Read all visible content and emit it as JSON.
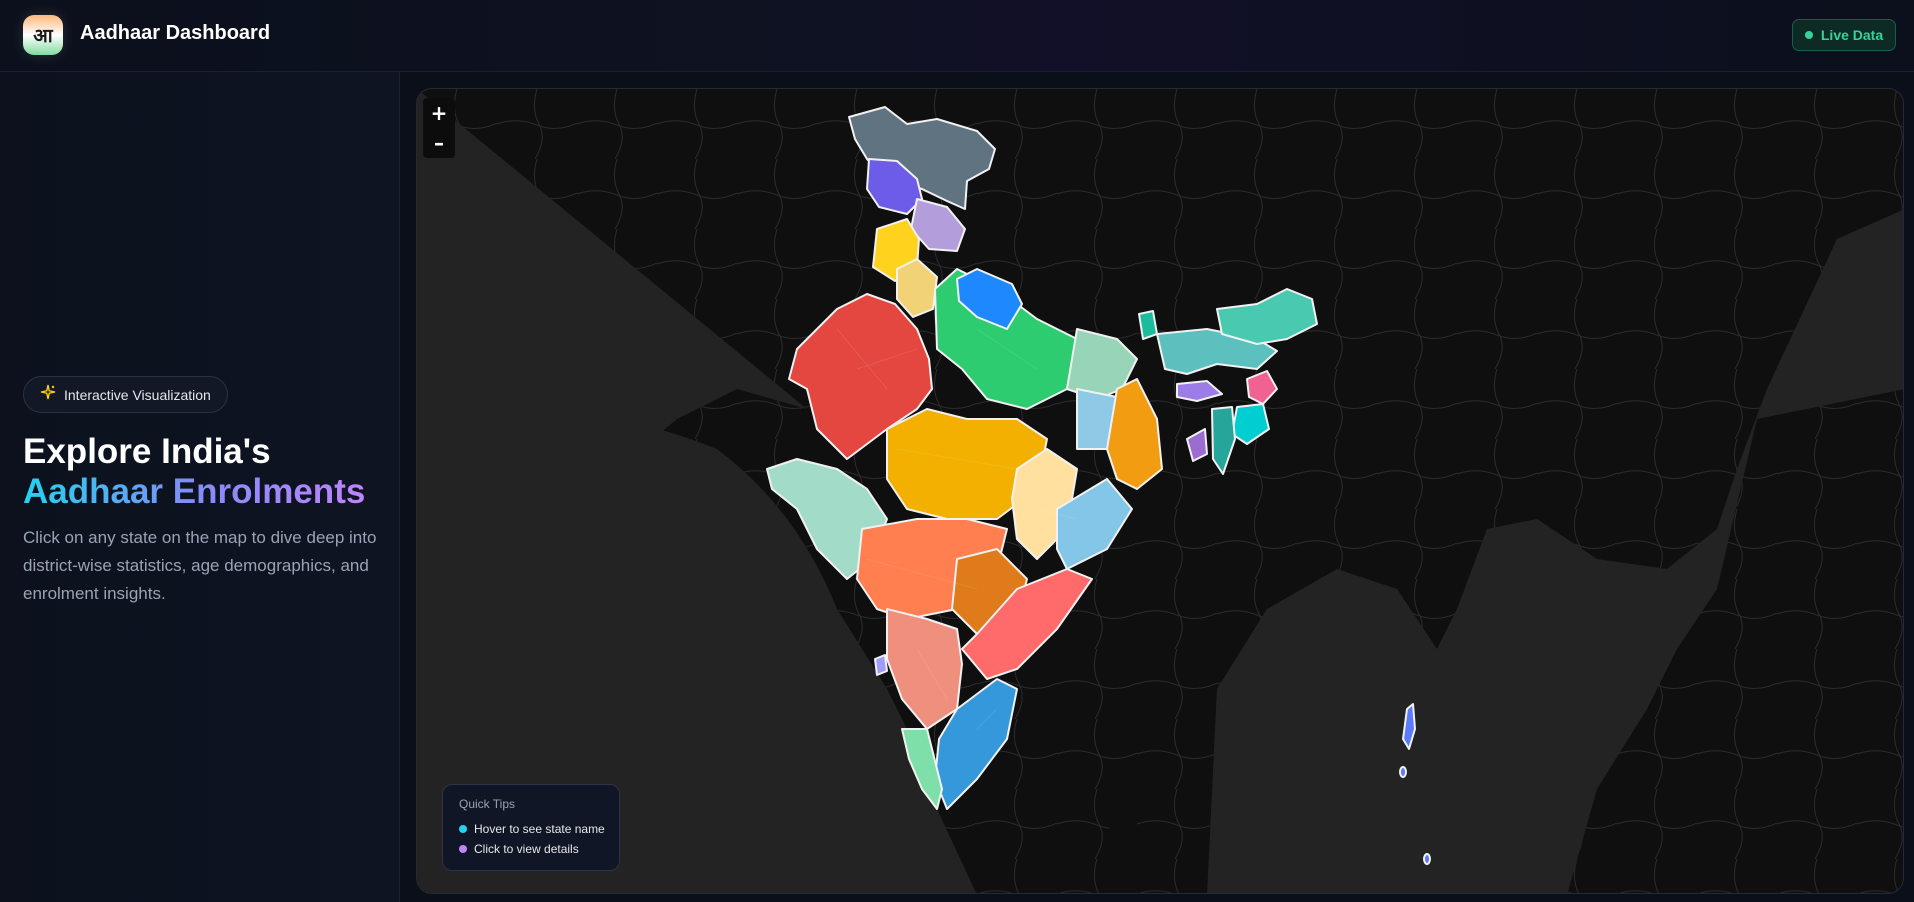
{
  "header": {
    "logo_glyph": "आ",
    "title": "Aadhaar Dashboard",
    "live_badge": "Live Data",
    "live_color": "#34d399"
  },
  "sidebar": {
    "pill_icon": "sparkle-icon",
    "pill_label": "Interactive Visualization",
    "headline_line1": "Explore India's",
    "headline_line2": "Aadhaar Enrolments",
    "intro": "Click on any state on the map to dive deep into district-wise statistics, age demographics, and enrolment insights."
  },
  "map": {
    "zoom_in": "+",
    "zoom_out": "–",
    "tips": {
      "title": "Quick Tips",
      "items": [
        {
          "label": "Hover to see state name",
          "color": "#22d3ee"
        },
        {
          "label": "Click to view details",
          "color": "#c084fc"
        }
      ]
    },
    "colors": {
      "ocean": "#232323",
      "land": "#0d0d0d",
      "border": "#f5f5f5"
    }
  }
}
